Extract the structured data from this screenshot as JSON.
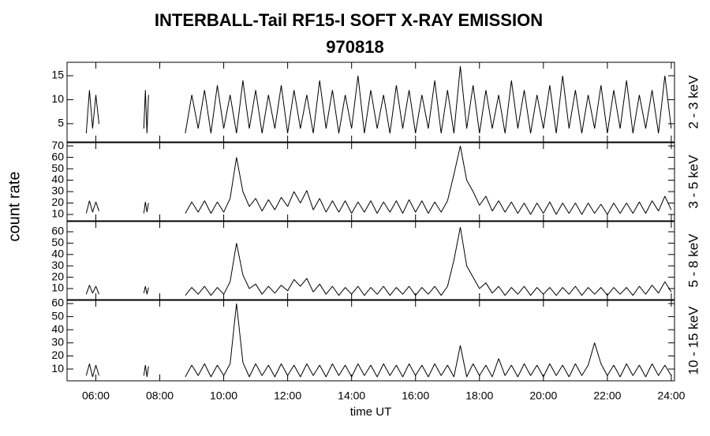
{
  "title": "INTERBALL-Tail RF15-I SOFT X-RAY EMISSION",
  "subtitle": "970818",
  "xlabel": "time UT",
  "ylabel": "count rate",
  "xlim": [
    5.1,
    24.1
  ],
  "xticks": [
    {
      "value": 6,
      "label": "06:00"
    },
    {
      "value": 8,
      "label": "08:00"
    },
    {
      "value": 10,
      "label": "10:00"
    },
    {
      "value": 12,
      "label": "12:00"
    },
    {
      "value": 14,
      "label": "14:00"
    },
    {
      "value": 16,
      "label": "16:00"
    },
    {
      "value": 18,
      "label": "18:00"
    },
    {
      "value": 20,
      "label": "20:00"
    },
    {
      "value": 22,
      "label": "22:00"
    },
    {
      "value": 24,
      "label": "24:00"
    }
  ],
  "x": [
    5.7,
    5.8,
    5.9,
    6.0,
    6.1,
    6.8,
    7.5,
    7.55,
    7.6,
    7.65,
    8.2,
    8.8,
    9.0,
    9.2,
    9.4,
    9.6,
    9.8,
    10.0,
    10.2,
    10.4,
    10.6,
    10.8,
    11.0,
    11.2,
    11.4,
    11.6,
    11.8,
    12.0,
    12.2,
    12.4,
    12.6,
    12.8,
    13.0,
    13.2,
    13.4,
    13.6,
    13.8,
    14.0,
    14.2,
    14.4,
    14.6,
    14.8,
    15.0,
    15.2,
    15.4,
    15.6,
    15.8,
    16.0,
    16.2,
    16.4,
    16.6,
    16.8,
    17.0,
    17.2,
    17.4,
    17.6,
    17.8,
    18.0,
    18.2,
    18.4,
    18.6,
    18.8,
    19.0,
    19.2,
    19.4,
    19.6,
    19.8,
    20.0,
    20.2,
    20.4,
    20.6,
    20.8,
    21.0,
    21.2,
    21.4,
    21.6,
    21.8,
    22.0,
    22.2,
    22.4,
    22.6,
    22.8,
    23.0,
    23.2,
    23.4,
    23.6,
    23.8,
    24.0
  ],
  "chart_data": [
    {
      "type": "line",
      "label": "2 - 3 keV",
      "color": "#000000",
      "ylim": [
        1.2,
        17.8
      ],
      "yticks": [
        5,
        10,
        15
      ],
      "values": [
        3,
        12,
        4,
        11,
        5,
        null,
        4,
        12,
        3,
        11,
        null,
        3,
        11,
        4,
        12,
        3,
        13,
        4,
        11,
        3,
        14,
        4,
        12,
        3,
        11,
        4,
        13,
        3,
        12,
        4,
        11,
        3,
        14,
        4,
        12,
        3,
        11,
        4,
        15,
        3,
        12,
        4,
        11,
        3,
        13,
        4,
        12,
        3,
        11,
        4,
        14,
        3,
        12,
        3,
        17,
        4,
        13,
        3,
        12,
        4,
        11,
        3,
        14,
        4,
        12,
        3,
        11,
        4,
        13,
        3,
        15,
        4,
        12,
        3,
        11,
        4,
        13,
        3,
        12,
        4,
        14,
        3,
        11,
        4,
        12,
        3,
        15,
        4
      ]
    },
    {
      "type": "line",
      "label": "3 - 5 keV",
      "color": "#000000",
      "ylim": [
        4.5,
        72.8
      ],
      "yticks": [
        10,
        20,
        30,
        40,
        50,
        60,
        70
      ],
      "values": [
        11,
        22,
        12,
        21,
        13,
        null,
        11,
        21,
        12,
        20,
        null,
        11,
        21,
        12,
        22,
        11,
        21,
        12,
        24,
        60,
        30,
        17,
        24,
        13,
        23,
        14,
        25,
        17,
        30,
        20,
        31,
        14,
        24,
        12,
        22,
        12,
        22,
        11,
        21,
        12,
        22,
        11,
        21,
        12,
        22,
        11,
        23,
        12,
        22,
        11,
        21,
        12,
        22,
        45,
        70,
        40,
        30,
        18,
        26,
        13,
        22,
        12,
        21,
        11,
        20,
        10,
        20,
        11,
        21,
        10,
        20,
        11,
        20,
        10,
        20,
        11,
        19,
        10,
        20,
        11,
        20,
        11,
        21,
        11,
        22,
        13,
        26,
        14
      ]
    },
    {
      "type": "line",
      "label": "5 - 8 keV",
      "color": "#000000",
      "ylim": [
        0.3,
        69
      ],
      "yticks": [
        10,
        20,
        30,
        40,
        50,
        60
      ],
      "values": [
        5,
        13,
        6,
        12,
        5,
        null,
        6,
        12,
        5,
        11,
        null,
        4,
        11,
        5,
        12,
        4,
        11,
        5,
        16,
        50,
        22,
        10,
        14,
        5,
        12,
        6,
        13,
        8,
        18,
        12,
        19,
        7,
        14,
        5,
        12,
        4,
        11,
        5,
        12,
        4,
        11,
        5,
        12,
        4,
        11,
        5,
        12,
        4,
        11,
        5,
        12,
        4,
        12,
        35,
        64,
        30,
        20,
        10,
        15,
        6,
        12,
        4,
        11,
        5,
        12,
        4,
        11,
        5,
        11,
        4,
        11,
        5,
        12,
        4,
        11,
        5,
        11,
        4,
        11,
        5,
        11,
        4,
        12,
        5,
        13,
        6,
        16,
        7
      ]
    },
    {
      "type": "line",
      "label": "10 - 15 keV",
      "color": "#000000",
      "ylim": [
        1.0,
        62.4
      ],
      "yticks": [
        10,
        20,
        30,
        40,
        50,
        60
      ],
      "values": [
        5,
        14,
        4,
        13,
        5,
        null,
        5,
        13,
        4,
        12,
        null,
        4,
        13,
        5,
        14,
        4,
        13,
        5,
        14,
        60,
        15,
        4,
        14,
        5,
        13,
        4,
        14,
        5,
        13,
        4,
        14,
        5,
        13,
        4,
        14,
        5,
        13,
        4,
        14,
        5,
        13,
        4,
        14,
        5,
        13,
        4,
        14,
        5,
        13,
        4,
        14,
        5,
        13,
        4,
        28,
        4,
        14,
        5,
        13,
        4,
        18,
        5,
        13,
        4,
        14,
        5,
        13,
        4,
        14,
        5,
        13,
        4,
        14,
        5,
        13,
        30,
        14,
        5,
        13,
        4,
        14,
        5,
        13,
        4,
        14,
        5,
        13,
        5
      ]
    }
  ]
}
